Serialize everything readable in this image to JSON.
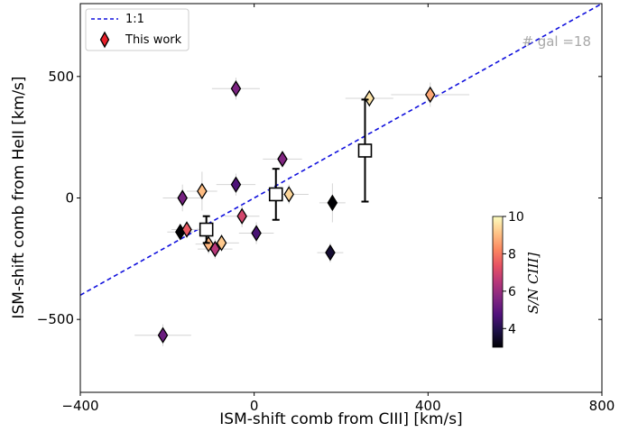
{
  "chart_data": {
    "type": "scatter",
    "xlabel": "ISM-shift comb from CIII] [km/s]",
    "ylabel": "ISM-shift comb from HeII [km/s]",
    "xlim": [
      -400,
      800
    ],
    "ylim": [
      -800,
      800
    ],
    "x_ticks": [
      -400,
      0,
      400,
      800
    ],
    "x_tick_labels": [
      "−400",
      "0",
      "400",
      "800"
    ],
    "y_ticks": [
      -500,
      0,
      500
    ],
    "y_tick_labels": [
      "−500",
      "0",
      "500"
    ],
    "annotation": "# gal =18",
    "legend": {
      "placement": "top-left",
      "entries": [
        {
          "label": "1:1",
          "style": "dashed-line",
          "color": "#0000ee"
        },
        {
          "label": "This work",
          "style": "diamond",
          "color": "#e8202a"
        }
      ]
    },
    "one_to_one_line": {
      "color": "#1010dd"
    },
    "colorbar": {
      "label": "S/N CIII]",
      "min": 3,
      "max": 10,
      "ticks": [
        4,
        6,
        8,
        10
      ],
      "tick_labels": [
        "4",
        "6",
        "8",
        "10"
      ],
      "colormap": [
        "#000004",
        "#1d1147",
        "#51127c",
        "#822681",
        "#b73779",
        "#e75263",
        "#fc8961",
        "#fec488",
        "#fcfdbf"
      ]
    },
    "points": [
      {
        "x": -210,
        "y": -565,
        "xerr": 65,
        "yerr": 45,
        "sn": 5.2
      },
      {
        "x": -170,
        "y": -140,
        "xerr": 30,
        "yerr": 25,
        "sn": 3.0
      },
      {
        "x": -165,
        "y": 0,
        "xerr": 45,
        "yerr": 55,
        "sn": 5.4
      },
      {
        "x": -155,
        "y": -130,
        "xerr": 35,
        "yerr": 30,
        "sn": 7.5
      },
      {
        "x": -120,
        "y": 28,
        "xerr": 35,
        "yerr": 80,
        "sn": 9.0
      },
      {
        "x": -105,
        "y": -190,
        "xerr": 30,
        "yerr": 40,
        "sn": 8.9
      },
      {
        "x": -90,
        "y": -210,
        "xerr": 40,
        "yerr": 40,
        "sn": 6.5
      },
      {
        "x": -75,
        "y": -185,
        "xerr": 40,
        "yerr": 35,
        "sn": 9.2
      },
      {
        "x": -42,
        "y": 450,
        "xerr": 55,
        "yerr": 45,
        "sn": 5.5
      },
      {
        "x": -42,
        "y": 55,
        "xerr": 45,
        "yerr": 45,
        "sn": 4.7
      },
      {
        "x": -28,
        "y": -75,
        "xerr": 40,
        "yerr": 45,
        "sn": 7.0
      },
      {
        "x": 5,
        "y": -145,
        "xerr": 40,
        "yerr": 45,
        "sn": 4.6
      },
      {
        "x": 65,
        "y": 160,
        "xerr": 45,
        "yerr": 30,
        "sn": 5.6
      },
      {
        "x": 80,
        "y": 15,
        "xerr": 45,
        "yerr": 40,
        "sn": 9.4
      },
      {
        "x": 175,
        "y": -225,
        "xerr": 30,
        "yerr": 40,
        "sn": 3.6
      },
      {
        "x": 180,
        "y": -20,
        "xerr": 30,
        "yerr": 80,
        "sn": 3.0
      },
      {
        "x": 265,
        "y": 410,
        "xerr": 55,
        "yerr": 35,
        "sn": 9.6
      },
      {
        "x": 405,
        "y": 425,
        "xerr": 90,
        "yerr": 50,
        "sn": 8.7
      }
    ],
    "binned": [
      {
        "x": -110,
        "y": -130,
        "yerr_low": 55,
        "yerr_high": 55
      },
      {
        "x": 50,
        "y": 15,
        "yerr_low": 105,
        "yerr_high": 105
      },
      {
        "x": 255,
        "y": 195,
        "yerr_low": 210,
        "yerr_high": 210
      }
    ]
  }
}
